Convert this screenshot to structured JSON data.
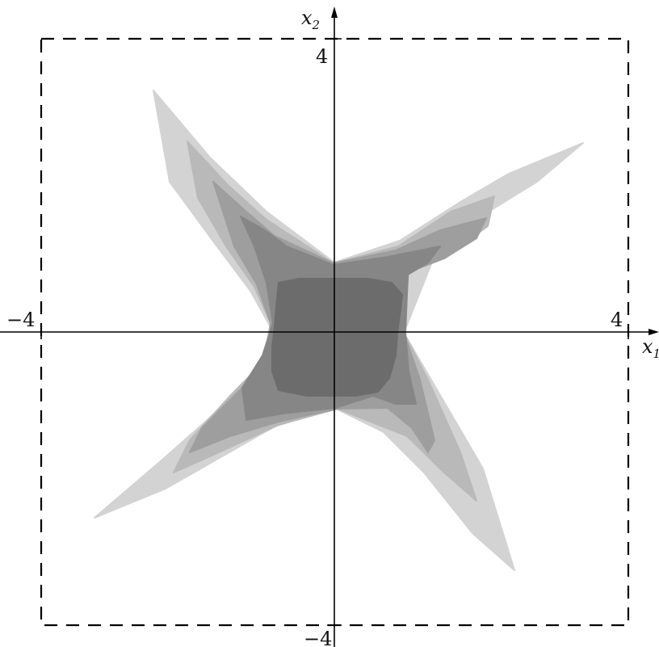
{
  "axes": {
    "x_label": "x",
    "x_label_subscript": "1",
    "y_label": "x",
    "y_label_subscript": "2",
    "range": [
      -4,
      4
    ],
    "ticks": {
      "x_min": "−4",
      "x_max": "4",
      "y_min": "−4",
      "y_max": "4"
    }
  },
  "colors": {
    "background": "#ffffff",
    "axis": "#000000",
    "dashed_box": "#000000",
    "level_1": "#d3d3d3",
    "level_2": "#b9b9b9",
    "level_3": "#9e9e9e",
    "level_4": "#868686",
    "level_5": "#6c6c6c"
  },
  "shape": "four-armed pinwheel density with 5 nested grey level regions",
  "dashed_box_range": [
    -4,
    4
  ]
}
